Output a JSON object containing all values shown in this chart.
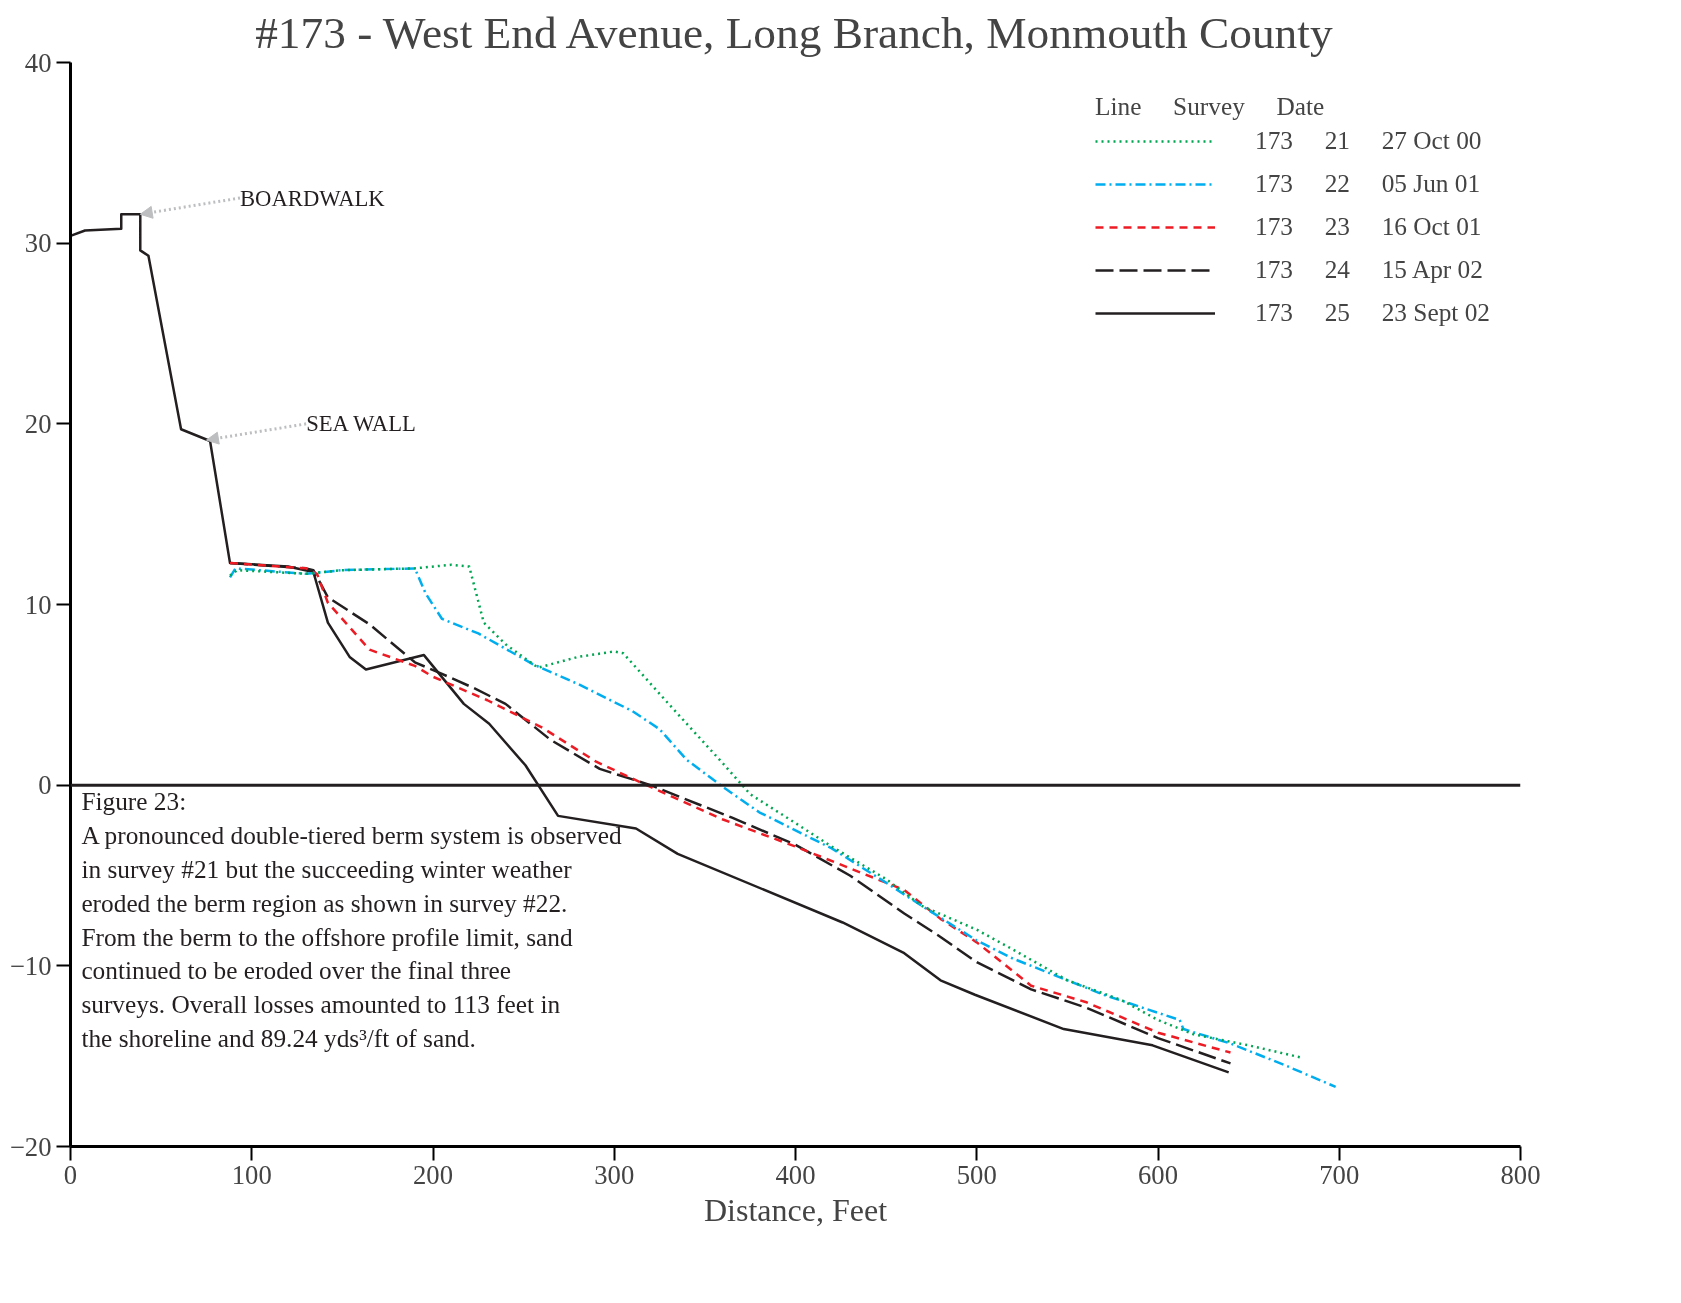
{
  "chart_data": {
    "type": "line",
    "title": "#173 - West End Avenue, Long Branch, Monmouth County",
    "xlabel": "Distance, Feet",
    "xlim": [
      0,
      800
    ],
    "xticks": [
      0,
      100,
      200,
      300,
      400,
      500,
      600,
      700,
      800
    ],
    "ylim": [
      -20,
      40
    ],
    "yticks": [
      -20,
      -10,
      0,
      10,
      20,
      30,
      40
    ],
    "grid": false,
    "legend": "top right",
    "legend_title": "Line     Survey     Date",
    "ref_lines": [
      {
        "axis": "y",
        "value": 0,
        "color": "#231f20",
        "line_style": "solid"
      }
    ],
    "annotations": [
      {
        "text": "BOARDWALK",
        "x": 38.5,
        "y": 31.6
      },
      {
        "text": "SEA WALL",
        "x": 75,
        "y": 19.1
      },
      "Figure 23:",
      "A pronounced double-tiered berm system is observed in survey #21 but the succeeding winter weather eroded the berm region as shown in survey #22. From the berm to the offshore profile limit, sand continued to be eroded over the final three surveys. Overall losses amounted to 113 feet in the shoreline and 89.24 yds³/ft of sand."
    ],
    "series": [
      {
        "name": "173     21     27 Oct 00",
        "color": "#00a651",
        "line_style": "dotted",
        "x": [
          88,
          92,
          130,
          150,
          190,
          210,
          220,
          228,
          240,
          258,
          280,
          300,
          305,
          330,
          360,
          375,
          400,
          420,
          450,
          470,
          500,
          520,
          550,
          580,
          600,
          620,
          650,
          680
        ],
        "values": [
          11.6,
          11.9,
          11.7,
          11.9,
          12.0,
          12.2,
          12.1,
          9.0,
          7.8,
          6.5,
          7.1,
          7.4,
          7.3,
          4.5,
          1.2,
          -0.5,
          -2.1,
          -3.4,
          -5.2,
          -6.7,
          -8.0,
          -9.1,
          -10.8,
          -11.9,
          -13.0,
          -13.8,
          -14.4,
          -15.1
        ]
      },
      {
        "name": "173     22     05 Jun 01",
        "color": "#00aeef",
        "line_style": "dashdot",
        "x": [
          88,
          91,
          130,
          150,
          190,
          196,
          205,
          225,
          255,
          280,
          310,
          325,
          340,
          360,
          380,
          420,
          450,
          470,
          500,
          520,
          550,
          570,
          600,
          612,
          614,
          640,
          670,
          698
        ],
        "values": [
          11.5,
          12.0,
          11.7,
          11.9,
          12.0,
          10.6,
          9.2,
          8.4,
          6.7,
          5.6,
          4.1,
          3.1,
          1.4,
          -0.1,
          -1.5,
          -3.5,
          -5.4,
          -6.7,
          -8.6,
          -9.6,
          -10.8,
          -11.6,
          -12.6,
          -13.0,
          -13.5,
          -14.3,
          -15.5,
          -16.7
        ]
      },
      {
        "name": "173     23     16 Oct 01",
        "color": "#ed1c24",
        "line_style": "dashed",
        "x": [
          88,
          130,
          136,
          142,
          165,
          190,
          200,
          230,
          260,
          290,
          320,
          360,
          400,
          430,
          460,
          480,
          500,
          530,
          560,
          600,
          640
        ],
        "values": [
          12.3,
          12.0,
          11.7,
          10.1,
          7.5,
          6.6,
          6.0,
          4.7,
          3.2,
          1.3,
          -0.1,
          -1.9,
          -3.4,
          -4.6,
          -5.8,
          -7.4,
          -8.7,
          -11.1,
          -12.0,
          -13.7,
          -14.8
        ]
      },
      {
        "name": "173     24     15 Apr 02",
        "color": "#231f20",
        "line_style": "longdash",
        "x": [
          88,
          130,
          134,
          142,
          165,
          190,
          204,
          222,
          240,
          265,
          292,
          320,
          365,
          400,
          430,
          460,
          480,
          500,
          530,
          560,
          600,
          640
        ],
        "values": [
          12.3,
          12.0,
          11.9,
          10.4,
          8.9,
          6.8,
          6.2,
          5.4,
          4.5,
          2.5,
          0.9,
          0.0,
          -1.8,
          -3.3,
          -5.0,
          -7.1,
          -8.4,
          -9.8,
          -11.3,
          -12.3,
          -14.0,
          -15.4
        ]
      },
      {
        "name": "173     25     23 Sept 02",
        "color": "#231f20",
        "line_style": "solid",
        "x": [
          0,
          0,
          8,
          28,
          28,
          38.5,
          38.5,
          43,
          61,
          77,
          88,
          120,
          134,
          142,
          154,
          163,
          195,
          217,
          231,
          251,
          269,
          312,
          335,
          426,
          460,
          480,
          499,
          548,
          597,
          639
        ],
        "values": [
          31.2,
          30.4,
          30.7,
          30.8,
          31.6,
          31.6,
          29.6,
          29.3,
          19.7,
          19.05,
          12.3,
          12.1,
          11.8,
          9.0,
          7.1,
          6.4,
          7.2,
          4.5,
          3.4,
          1.1,
          -1.7,
          -2.4,
          -3.8,
          -7.6,
          -9.3,
          -10.8,
          -11.6,
          -13.5,
          -14.4,
          -15.9
        ]
      }
    ]
  }
}
